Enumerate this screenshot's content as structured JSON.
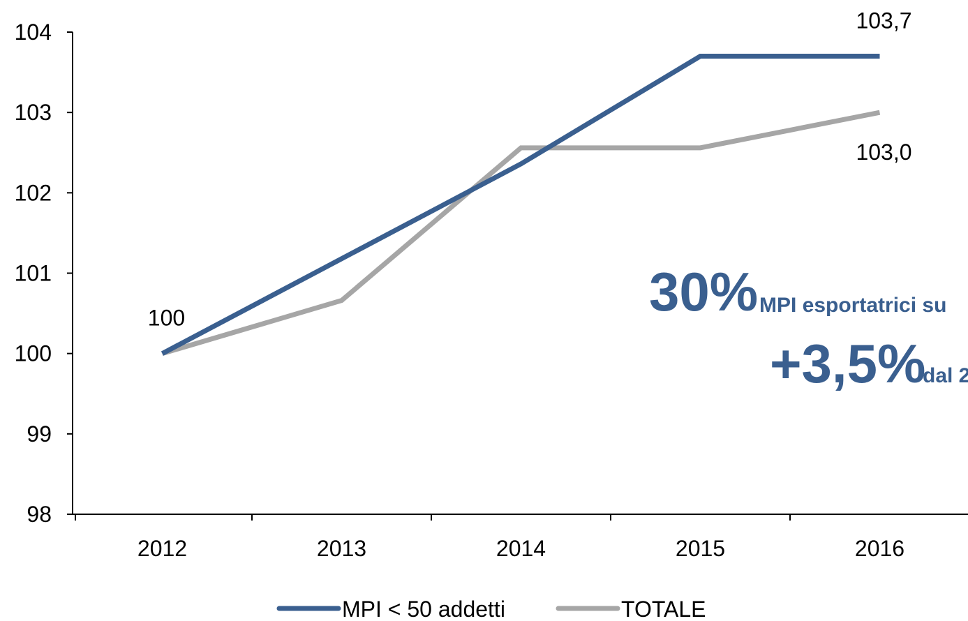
{
  "chart_data": {
    "type": "line",
    "categories": [
      "2012",
      "2013",
      "2014",
      "2015",
      "2016"
    ],
    "series": [
      {
        "name": "MPI < 50 addetti",
        "color": "#3a5f8f",
        "values": [
          100,
          101.18,
          102.36,
          103.7,
          103.7
        ],
        "value_labels": [
          "100",
          null,
          null,
          null,
          "103,7"
        ]
      },
      {
        "name": "TOTALE",
        "color": "#a6a6a6",
        "values": [
          100,
          100.66,
          102.56,
          102.56,
          103.0
        ],
        "value_labels": [
          null,
          null,
          null,
          null,
          "103,0"
        ]
      }
    ],
    "ylim": [
      98,
      104
    ],
    "yticks": [
      98,
      99,
      100,
      101,
      102,
      103,
      104
    ],
    "legend": "bottom",
    "annotations": [
      "30%",
      "MPI esportatrici su",
      "+3,5%",
      "dal 2"
    ]
  }
}
